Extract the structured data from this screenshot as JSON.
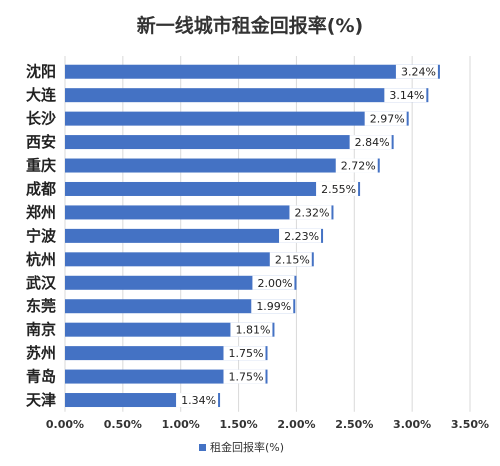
{
  "chart_data": {
    "type": "bar",
    "orientation": "horizontal",
    "title": "新一线城市租金回报率(%)",
    "categories": [
      "沈阳",
      "大连",
      "长沙",
      "西安",
      "重庆",
      "成都",
      "郑州",
      "宁波",
      "杭州",
      "武汉",
      "东莞",
      "南京",
      "苏州",
      "青岛",
      "天津"
    ],
    "series": [
      {
        "name": "租金回报率(%)",
        "values": [
          3.24,
          3.14,
          2.97,
          2.84,
          2.72,
          2.55,
          2.32,
          2.23,
          2.15,
          2.0,
          1.99,
          1.81,
          1.75,
          1.75,
          1.34
        ],
        "data_labels": [
          "3.24%",
          "3.14%",
          "2.97%",
          "2.84%",
          "2.72%",
          "2.55%",
          "2.32%",
          "2.23%",
          "2.15%",
          "2.00%",
          "1.99%",
          "1.81%",
          "1.75%",
          "1.75%",
          "1.34%"
        ],
        "color": "#4472c4"
      }
    ],
    "xlim": [
      0,
      3.5
    ],
    "x_ticks": [
      0,
      0.5,
      1.0,
      1.5,
      2.0,
      2.5,
      3.0,
      3.5
    ],
    "x_tick_labels": [
      "0.00%",
      "0.50%",
      "1.00%",
      "1.50%",
      "2.00%",
      "2.50%",
      "3.00%",
      "3.50%"
    ],
    "grid": true,
    "legend": {
      "position": "bottom",
      "label": "租金回报率(%)"
    }
  }
}
